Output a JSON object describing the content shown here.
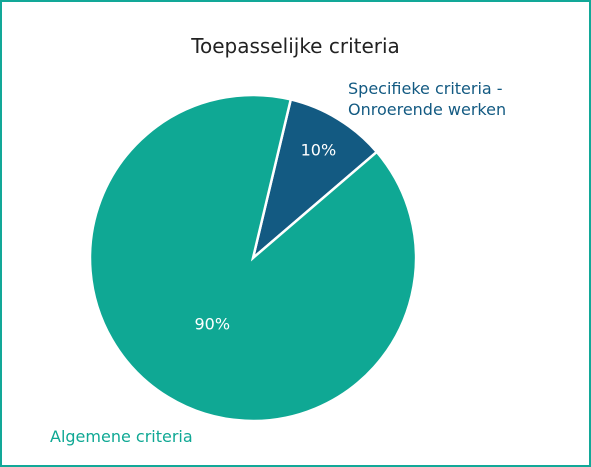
{
  "chart_data": {
    "type": "pie",
    "title": "Toepasselijke criteria",
    "categories": [
      "Specifieke criteria - Onroerende werken",
      "Algemene criteria"
    ],
    "values": [
      10,
      90
    ],
    "value_labels": [
      "10%",
      "90%"
    ],
    "colors": [
      "#135a82",
      "#0fa894"
    ]
  }
}
